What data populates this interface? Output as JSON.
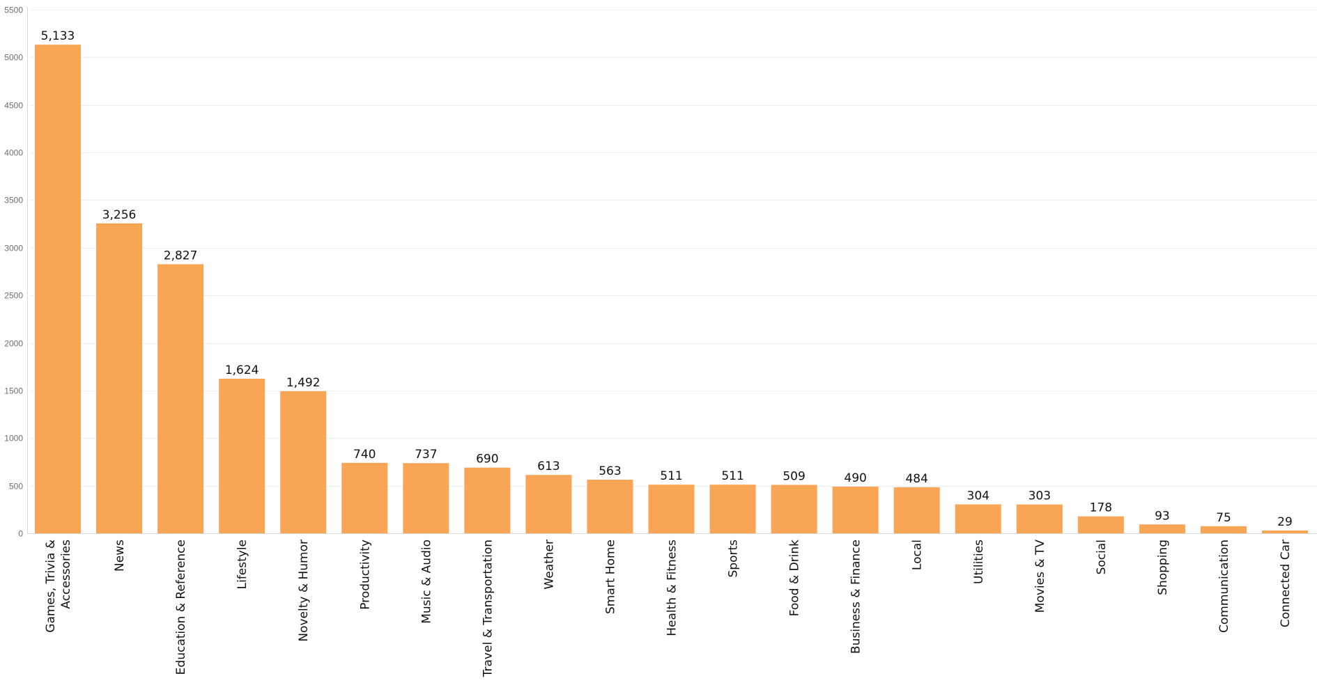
{
  "chart_data": {
    "type": "bar",
    "title": "",
    "xlabel": "",
    "ylabel": "",
    "categories": [
      "Games, Trivia & Accessories",
      "News",
      "Education & Reference",
      "Lifestyle",
      "Novelty & Humor",
      "Productivity",
      "Music & Audio",
      "Travel & Transportation",
      "Weather",
      "Smart Home",
      "Health & Fitness",
      "Sports",
      "Food & Drink",
      "Business & Finance",
      "Local",
      "Utilities",
      "Movies & TV",
      "Social",
      "Shopping",
      "Communication",
      "Connected Car"
    ],
    "category_label_lines": [
      [
        "Games, Trivia &",
        "Accessories"
      ],
      [
        "News"
      ],
      [
        "Education & Reference"
      ],
      [
        "Lifestyle"
      ],
      [
        "Novelty & Humor"
      ],
      [
        "Productivity"
      ],
      [
        "Music & Audio"
      ],
      [
        "Travel & Transportation"
      ],
      [
        "Weather"
      ],
      [
        "Smart Home"
      ],
      [
        "Health & Fitness"
      ],
      [
        "Sports"
      ],
      [
        "Food & Drink"
      ],
      [
        "Business & Finance"
      ],
      [
        "Local"
      ],
      [
        "Utilities"
      ],
      [
        "Movies & TV"
      ],
      [
        "Social"
      ],
      [
        "Shopping"
      ],
      [
        "Communication"
      ],
      [
        "Connected Car"
      ]
    ],
    "values": [
      5133,
      3256,
      2827,
      1624,
      1492,
      740,
      737,
      690,
      613,
      563,
      511,
      511,
      509,
      490,
      484,
      304,
      303,
      178,
      93,
      75,
      29
    ],
    "value_labels": [
      "5,133",
      "3,256",
      "2,827",
      "1,624",
      "1,492",
      "740",
      "737",
      "690",
      "613",
      "563",
      "511",
      "511",
      "509",
      "490",
      "484",
      "304",
      "303",
      "178",
      "93",
      "75",
      "29"
    ],
    "ylim": [
      0,
      5500
    ],
    "yticks": [
      0,
      500,
      1000,
      1500,
      2000,
      2500,
      3000,
      3500,
      4000,
      4500,
      5000,
      5500
    ],
    "grid": true,
    "legend": "none",
    "colors": {
      "bar": "#F8A555",
      "grid": "#EFEFEF",
      "axis": "#D9D9D9",
      "tick_text": "#6E6E6E",
      "label_text": "#111111"
    }
  }
}
